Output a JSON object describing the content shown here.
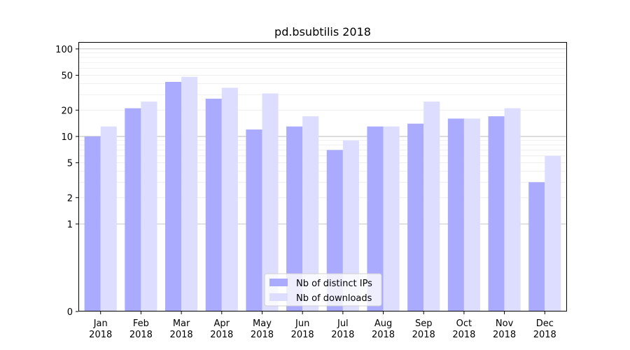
{
  "chart_data": {
    "type": "bar",
    "title": "pd.bsubtilis 2018",
    "xlabel": "",
    "ylabel": "",
    "yscale": "symlog",
    "ylim": [
      0,
      120
    ],
    "yticks": [
      0,
      1,
      2,
      5,
      10,
      20,
      50,
      100
    ],
    "ytick_labels": [
      "0",
      "1",
      "2",
      "5",
      "10",
      "20",
      "50",
      "100"
    ],
    "categories": [
      "Jan\n2018",
      "Feb\n2018",
      "Mar\n2018",
      "Apr\n2018",
      "May\n2018",
      "Jun\n2018",
      "Jul\n2018",
      "Aug\n2018",
      "Sep\n2018",
      "Oct\n2018",
      "Nov\n2018",
      "Dec\n2018"
    ],
    "series": [
      {
        "name": "Nb of distinct IPs",
        "color": "#aaaaff",
        "values": [
          10,
          21,
          42,
          27,
          12,
          13,
          7,
          13,
          14,
          16,
          17,
          3
        ]
      },
      {
        "name": "Nb of downloads",
        "color": "#ddddff",
        "values": [
          13,
          25,
          48,
          36,
          31,
          17,
          9,
          13,
          25,
          16,
          21,
          6
        ]
      }
    ],
    "grid": true,
    "legend_position": "bottom-center"
  }
}
